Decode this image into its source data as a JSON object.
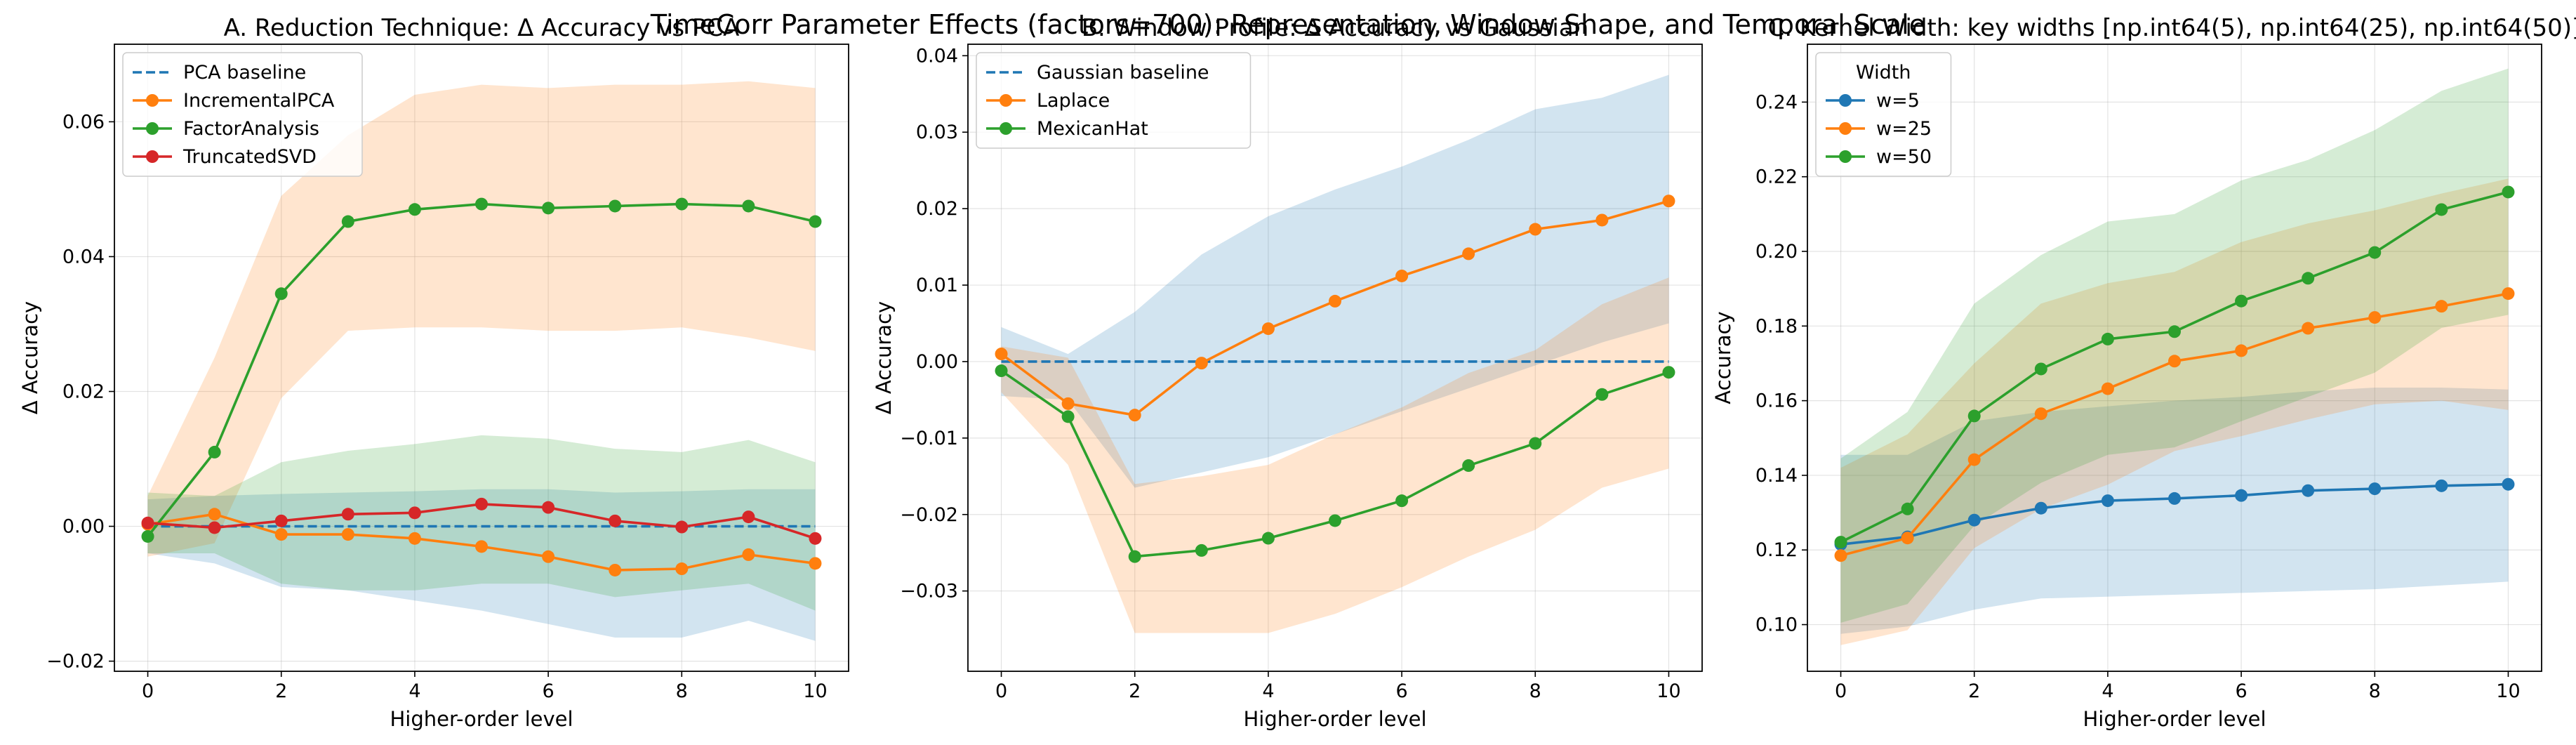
{
  "suptitle": "TimeCorr Parameter Effects (factors=700): Representation, Window Shape, and Temporal Scale",
  "colors": {
    "blue": "#1f77b4",
    "orange": "#ff7f0e",
    "green": "#2ca02c",
    "red": "#d62728",
    "grid": "#b0b0b0"
  },
  "chart_data": [
    {
      "type": "line",
      "title": "A. Reduction Technique: Δ Accuracy vs PCA",
      "xlabel": "Higher-order level",
      "ylabel": "Δ Accuracy",
      "x": [
        0,
        1,
        2,
        3,
        4,
        5,
        6,
        7,
        8,
        9,
        10
      ],
      "xlim": [
        -0.5,
        10.5
      ],
      "ylim": [
        -0.0215,
        0.0715
      ],
      "xticks": [
        0,
        2,
        4,
        6,
        8,
        10
      ],
      "yticks": [
        -0.02,
        0.0,
        0.02,
        0.04,
        0.06
      ],
      "ytick_labels": [
        "−0.02",
        "0.00",
        "0.02",
        "0.04",
        "0.06"
      ],
      "grid": true,
      "legend_position": "upper-left",
      "legend_title": "",
      "series": [
        {
          "name": "PCA baseline",
          "color": "blue",
          "style": "dashed",
          "values": [
            0,
            0,
            0,
            0,
            0,
            0,
            0,
            0,
            0,
            0,
            0
          ],
          "band_upper": [
            0.004,
            0.0045,
            0.0048,
            0.005,
            0.0052,
            0.0055,
            0.0055,
            0.005,
            0.0052,
            0.0055,
            0.0055
          ],
          "band_lower": [
            -0.004,
            -0.0055,
            -0.009,
            -0.0095,
            -0.011,
            -0.0125,
            -0.0145,
            -0.0165,
            -0.0165,
            -0.014,
            -0.017
          ]
        },
        {
          "name": "IncrementalPCA",
          "color": "orange",
          "style": "solid-marker",
          "values": [
            0.0003,
            0.0018,
            -0.0012,
            -0.0012,
            -0.0018,
            -0.003,
            -0.0045,
            -0.0065,
            -0.0063,
            -0.0042,
            -0.0055
          ],
          "band_upper": [
            0.0045,
            0.025,
            0.049,
            0.058,
            0.064,
            0.0655,
            0.065,
            0.0655,
            0.0655,
            0.066,
            0.065
          ],
          "band_lower": [
            -0.0045,
            -0.0025,
            0.019,
            0.029,
            0.0295,
            0.0295,
            0.029,
            0.029,
            0.0295,
            0.028,
            0.026
          ]
        },
        {
          "name": "FactorAnalysis",
          "color": "green",
          "style": "solid-marker",
          "values": [
            -0.0015,
            0.011,
            0.0345,
            0.0452,
            0.047,
            0.0478,
            0.0472,
            0.0475,
            0.0478,
            0.0475,
            0.0452
          ],
          "band_upper": [
            0.005,
            0.0045,
            0.0095,
            0.0112,
            0.0122,
            0.0135,
            0.013,
            0.0115,
            0.011,
            0.0128,
            0.0095
          ],
          "band_lower": [
            -0.004,
            -0.004,
            -0.0085,
            -0.0095,
            -0.0095,
            -0.0085,
            -0.0085,
            -0.0105,
            -0.0095,
            -0.0085,
            -0.0125
          ]
        },
        {
          "name": "TruncatedSVD",
          "color": "red",
          "style": "solid-marker",
          "values": [
            0.0005,
            -0.0002,
            0.0008,
            0.0018,
            0.002,
            0.0033,
            0.0028,
            0.0008,
            -0.0001,
            0.0014,
            -0.0018
          ]
        }
      ]
    },
    {
      "type": "line",
      "title": "B. Window Profile: Δ Accuracy vs Gaussian",
      "xlabel": "Higher-order level",
      "ylabel": "Δ Accuracy",
      "x": [
        0,
        1,
        2,
        3,
        4,
        5,
        6,
        7,
        8,
        9,
        10
      ],
      "xlim": [
        -0.5,
        10.5
      ],
      "ylim": [
        -0.0405,
        0.0415
      ],
      "xticks": [
        0,
        2,
        4,
        6,
        8,
        10
      ],
      "yticks": [
        -0.03,
        -0.02,
        -0.01,
        0.0,
        0.01,
        0.02,
        0.03,
        0.04
      ],
      "ytick_labels": [
        "−0.03",
        "−0.02",
        "−0.01",
        "0.00",
        "0.01",
        "0.02",
        "0.03",
        "0.04"
      ],
      "grid": true,
      "legend_position": "upper-left",
      "legend_title": "",
      "series": [
        {
          "name": "Gaussian baseline",
          "color": "blue",
          "style": "dashed",
          "values": [
            0,
            0,
            0,
            0,
            0,
            0,
            0,
            0,
            0,
            0,
            0
          ],
          "band_upper": [
            0.0045,
            0.001,
            0.0065,
            0.014,
            0.019,
            0.0225,
            0.0255,
            0.029,
            0.033,
            0.0345,
            0.0375
          ],
          "band_lower": [
            -0.0045,
            -0.005,
            -0.0165,
            -0.0145,
            -0.0125,
            -0.0095,
            -0.0065,
            -0.0035,
            -0.0005,
            0.0025,
            0.005
          ]
        },
        {
          "name": "Laplace",
          "color": "orange",
          "style": "solid-marker",
          "values": [
            0.001,
            -0.0055,
            -0.007,
            -0.0002,
            0.0043,
            0.0079,
            0.0112,
            0.0141,
            0.0173,
            0.0185,
            0.021
          ],
          "band_upper": [
            0.002,
            0.0005,
            -0.016,
            -0.015,
            -0.0135,
            -0.0095,
            -0.006,
            -0.0015,
            0.0015,
            0.0075,
            0.011
          ],
          "band_lower": [
            -0.004,
            -0.0135,
            -0.0355,
            -0.0355,
            -0.0355,
            -0.033,
            -0.0295,
            -0.0255,
            -0.022,
            -0.0165,
            -0.014
          ]
        },
        {
          "name": "MexicanHat",
          "color": "green",
          "style": "solid-marker",
          "values": [
            -0.0012,
            -0.0072,
            -0.0255,
            -0.0247,
            -0.0231,
            -0.0208,
            -0.0182,
            -0.0136,
            -0.0107,
            -0.0043,
            -0.0014
          ]
        }
      ]
    },
    {
      "type": "line",
      "title": "C. Kernel Width: key widths [np.int64(5), np.int64(25), np.int64(50)]",
      "xlabel": "Higher-order level",
      "ylabel": "Accuracy",
      "x": [
        0,
        1,
        2,
        3,
        4,
        5,
        6,
        7,
        8,
        9,
        10
      ],
      "xlim": [
        -0.5,
        10.5
      ],
      "ylim": [
        0.0875,
        0.2555
      ],
      "xticks": [
        0,
        2,
        4,
        6,
        8,
        10
      ],
      "yticks": [
        0.1,
        0.12,
        0.14,
        0.16,
        0.18,
        0.2,
        0.22,
        0.24
      ],
      "ytick_labels": [
        "0.10",
        "0.12",
        "0.14",
        "0.16",
        "0.18",
        "0.20",
        "0.22",
        "0.24"
      ],
      "grid": true,
      "legend_position": "upper-left",
      "legend_title": "Width",
      "series": [
        {
          "name": "w=5",
          "color": "blue",
          "style": "solid-marker",
          "values": [
            0.1215,
            0.1235,
            0.128,
            0.1312,
            0.1332,
            0.1338,
            0.1346,
            0.1359,
            0.1364,
            0.1372,
            0.1376
          ],
          "band_upper": [
            0.1455,
            0.1455,
            0.1545,
            0.157,
            0.1585,
            0.16,
            0.161,
            0.1625,
            0.1635,
            0.1635,
            0.163
          ],
          "band_lower": [
            0.0975,
            0.0995,
            0.104,
            0.107,
            0.1075,
            0.108,
            0.1085,
            0.109,
            0.1095,
            0.1105,
            0.1115
          ]
        },
        {
          "name": "w=25",
          "color": "orange",
          "style": "solid-marker",
          "values": [
            0.1185,
            0.1232,
            0.1442,
            0.1565,
            0.1632,
            0.1706,
            0.1734,
            0.1794,
            0.1823,
            0.1853,
            0.1887
          ],
          "band_upper": [
            0.142,
            0.151,
            0.17,
            0.186,
            0.1915,
            0.1945,
            0.2025,
            0.2075,
            0.211,
            0.2155,
            0.2195
          ],
          "band_lower": [
            0.0945,
            0.0985,
            0.1205,
            0.131,
            0.1375,
            0.1465,
            0.1505,
            0.155,
            0.159,
            0.16,
            0.1575
          ]
        },
        {
          "name": "w=50",
          "color": "green",
          "style": "solid-marker",
          "values": [
            0.1221,
            0.131,
            0.1559,
            0.1685,
            0.1765,
            0.1785,
            0.1867,
            0.1928,
            0.1997,
            0.2112,
            0.2159
          ],
          "band_upper": [
            0.1445,
            0.157,
            0.186,
            0.199,
            0.208,
            0.21,
            0.219,
            0.2245,
            0.2325,
            0.243,
            0.249
          ],
          "band_lower": [
            0.1005,
            0.1055,
            0.1265,
            0.138,
            0.1455,
            0.1475,
            0.1545,
            0.161,
            0.1675,
            0.1795,
            0.183
          ]
        }
      ]
    }
  ]
}
